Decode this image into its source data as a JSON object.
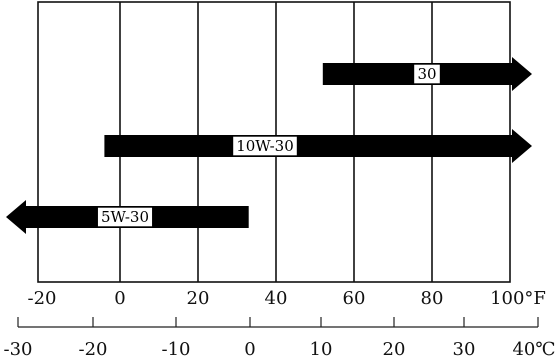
{
  "fahrenheit_scale": {
    "ticks": [
      "-20",
      "0",
      "20",
      "40",
      "60",
      "80",
      "100°F"
    ],
    "unit": "°F"
  },
  "celsius_scale": {
    "ticks": [
      "-30",
      "-20",
      "-10",
      "0",
      "10",
      "20",
      "30",
      "40℃"
    ],
    "unit": "℃"
  },
  "grades": [
    {
      "label": "30",
      "from_f": 52,
      "to_f": 105,
      "arrow_left": false,
      "arrow_right": true
    },
    {
      "label": "10W-30",
      "from_f": -4,
      "to_f": 105,
      "arrow_left": false,
      "arrow_right": true
    },
    {
      "label": "5W-30",
      "from_f": -30,
      "to_f": 33,
      "arrow_left": true,
      "arrow_right": false
    }
  ],
  "colors": {
    "arrow": "#000000",
    "background": "#ffffff",
    "grid": "#111111"
  }
}
